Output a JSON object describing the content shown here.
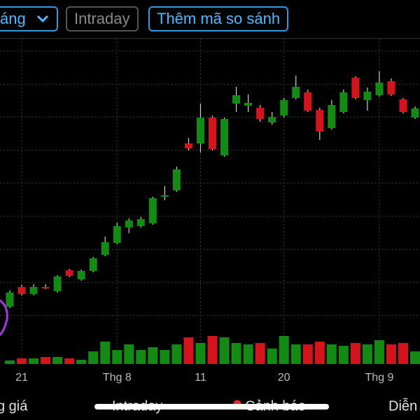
{
  "toolbar": {
    "range_button": "áng",
    "intraday_button": "Intraday",
    "compare_button": "Thêm mã so sánh"
  },
  "chart_data": {
    "type": "candlestick",
    "categories": [
      null,
      "21",
      null,
      null,
      null,
      null,
      null,
      null,
      null,
      "Thg 8",
      null,
      null,
      null,
      null,
      null,
      null,
      "11",
      null,
      null,
      null,
      null,
      null,
      null,
      "20",
      null,
      null,
      null,
      null,
      null,
      null,
      null,
      "Thg 9",
      null,
      null,
      null
    ],
    "open": [
      82,
      110,
      100,
      110,
      104,
      134,
      121,
      133,
      156,
      173,
      195,
      197,
      201,
      239,
      248,
      315,
      315,
      352,
      298,
      372,
      369,
      366,
      345,
      355,
      380,
      388,
      363,
      337,
      360,
      409,
      377,
      384,
      404,
      378,
      352
    ],
    "high": [
      105,
      113,
      114,
      114,
      127,
      136,
      135,
      153,
      182,
      202,
      208,
      210,
      239,
      254,
      282,
      323,
      372,
      355,
      352,
      396,
      385,
      370,
      360,
      380,
      412,
      392,
      366,
      377,
      392,
      411,
      395,
      418,
      408,
      380,
      368
    ],
    "low": [
      80,
      98,
      98,
      107,
      102,
      124,
      119,
      131,
      154,
      171,
      187,
      195,
      199,
      234,
      246,
      305,
      302,
      305,
      296,
      360,
      360,
      346,
      342,
      352,
      378,
      360,
      320,
      335,
      358,
      378,
      362,
      382,
      383,
      358,
      350
    ],
    "close": [
      102,
      100,
      110,
      108,
      125,
      126,
      133,
      151,
      174,
      197,
      205,
      207,
      237,
      241,
      278,
      308,
      352,
      307,
      350,
      384,
      373,
      350,
      353,
      377,
      396,
      362,
      332,
      370,
      388,
      380,
      389,
      402,
      385,
      360,
      365
    ],
    "volume": [
      5,
      8,
      8,
      10,
      10,
      8,
      6,
      18,
      32,
      20,
      28,
      20,
      24,
      20,
      28,
      38,
      30,
      40,
      38,
      30,
      28,
      30,
      22,
      40,
      28,
      28,
      32,
      28,
      26,
      30,
      28,
      34,
      28,
      30,
      18
    ],
    "ylim": [
      0,
      465
    ],
    "y2lim": [
      0,
      465
    ],
    "up_color": "#138a13",
    "down_color": "#d4141c",
    "grid": true
  },
  "bottom_tabs": [
    "g giá",
    "Intraday",
    "Cảnh báo",
    "Diễn"
  ]
}
